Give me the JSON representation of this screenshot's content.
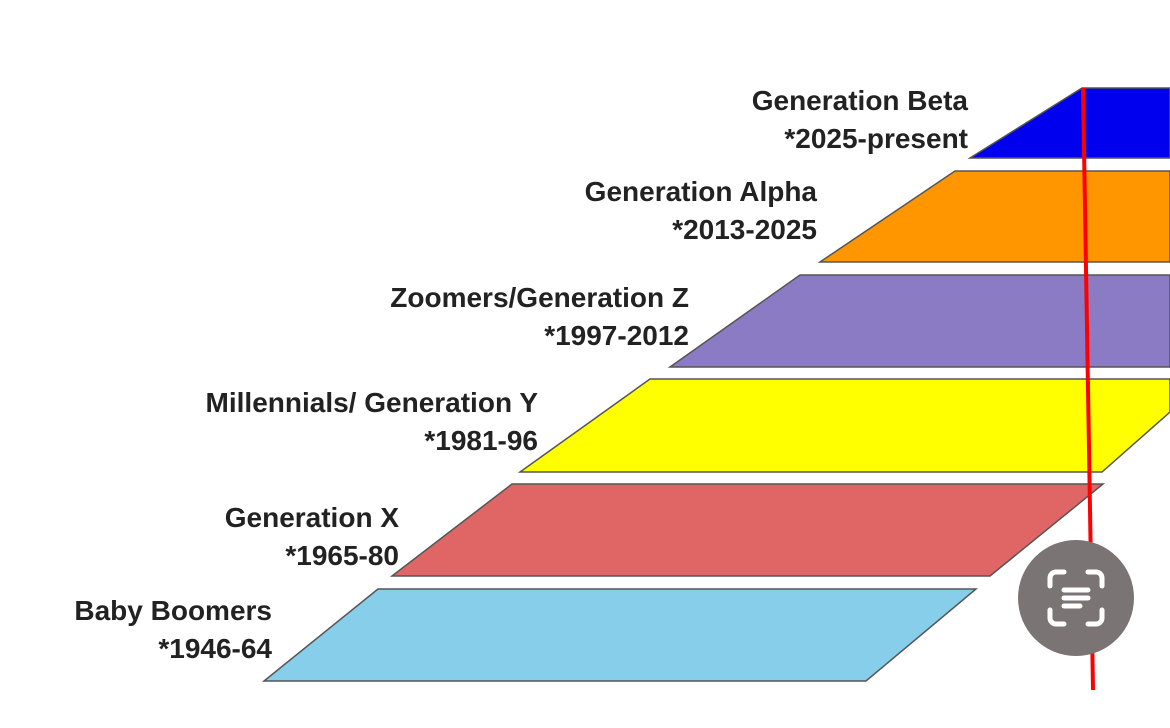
{
  "generations": [
    {
      "name": "Baby Boomers",
      "years": "*1946-64",
      "color": "#87ceeb"
    },
    {
      "name": "Generation X",
      "years": "*1965-80",
      "color": "#e06666"
    },
    {
      "name": "Millennials/ Generation Y",
      "years": "*1981-96",
      "color": "#ffff00"
    },
    {
      "name": "Zoomers/Generation Z",
      "years": "*1997-2012",
      "color": "#8b7bc4"
    },
    {
      "name": "Generation Alpha",
      "years": "*2013-2025",
      "color": "#ff9600"
    },
    {
      "name": "Generation Beta",
      "years": "*2025-present",
      "color": "#0000ee"
    }
  ],
  "marker_color": "#ff0000",
  "lens_button": {
    "icon": "text-scan-icon"
  }
}
